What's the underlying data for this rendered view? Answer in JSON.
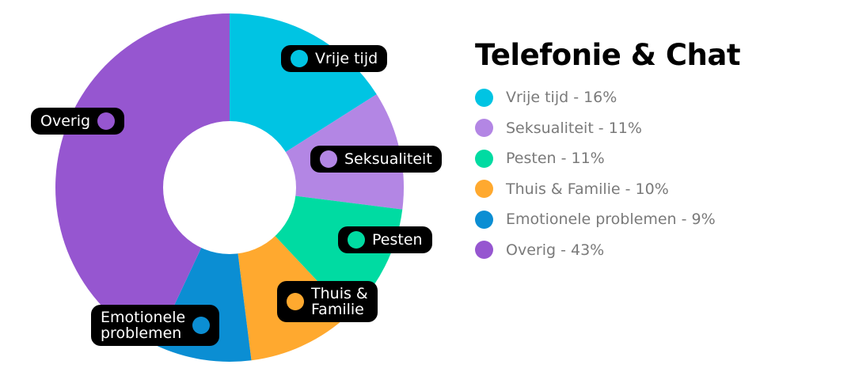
{
  "chart_data": {
    "type": "pie",
    "title": "Telefonie & Chat",
    "categories": [
      "Vrije tijd",
      "Seksualiteit",
      "Pesten",
      "Thuis & Familie",
      "Emotionele problemen",
      "Overig"
    ],
    "values": [
      16,
      11,
      11,
      10,
      9,
      43
    ],
    "unit": "%",
    "colors": [
      "#00c4e3",
      "#b386e4",
      "#00dba2",
      "#ffa92f",
      "#0b8ed3",
      "#9656d0"
    ],
    "donut": true,
    "legend": "right"
  },
  "title": "Telefonie & Chat",
  "legend": [
    {
      "text": "Vrije tijd - 16%",
      "color": "#00c4e3"
    },
    {
      "text": "Seksualiteit - 11%",
      "color": "#b386e4"
    },
    {
      "text": "Pesten - 11%",
      "color": "#00dba2"
    },
    {
      "text": "Thuis & Familie - 10%",
      "color": "#ffa92f"
    },
    {
      "text": "Emotionele problemen - 9%",
      "color": "#0b8ed3"
    },
    {
      "text": "Overig - 43%",
      "color": "#9656d0"
    }
  ],
  "tags": {
    "vrije_tijd": "Vrije tijd",
    "seksualiteit": "Seksualiteit",
    "pesten": "Pesten",
    "thuis_line1": "Thuis &",
    "thuis_line2": "Familie",
    "emotionele_line1": "Emotionele",
    "emotionele_line2": "problemen",
    "overig": "Overig"
  }
}
